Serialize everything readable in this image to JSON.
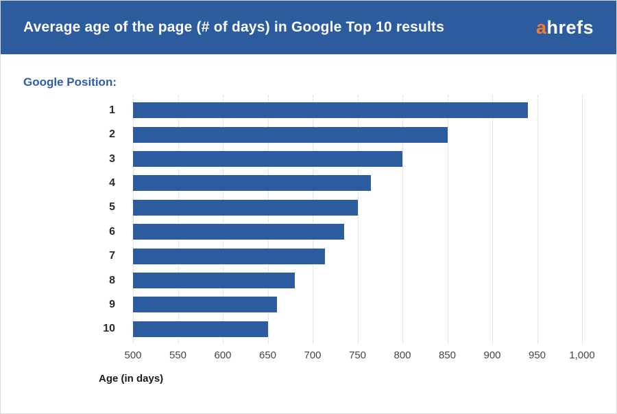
{
  "header": {
    "title": "Average age of the page (# of days) in Google Top 10 results",
    "logo": {
      "prefix": "a",
      "rest": "hrefs"
    }
  },
  "colors": {
    "header_bg": "#2d5c9e",
    "bar_blue": "#2d5c9e",
    "logo_orange": "#f47b29",
    "y_axis_title_blue": "#2c5cab",
    "gridline": "#cfcfcf",
    "tick_text": "#454545"
  },
  "chart_data": {
    "type": "bar",
    "orientation": "horizontal",
    "title": "Average age of the page (# of days) in Google Top 10 results",
    "y_axis_title": "Google Position:",
    "xlabel": "Age (in days)",
    "categories": [
      "1",
      "2",
      "3",
      "4",
      "5",
      "6",
      "7",
      "8",
      "9",
      "10"
    ],
    "values": [
      940,
      850,
      800,
      765,
      750,
      735,
      714,
      680,
      660,
      650
    ],
    "xlim": [
      500,
      1000
    ],
    "x_ticks": [
      500,
      550,
      600,
      650,
      700,
      750,
      800,
      850,
      900,
      950,
      1000
    ],
    "x_tick_labels": [
      "500",
      "550",
      "600",
      "650",
      "700",
      "750",
      "800",
      "850",
      "900",
      "950",
      "1,000"
    ],
    "grid": "vertical-dotted",
    "legend": "none"
  }
}
